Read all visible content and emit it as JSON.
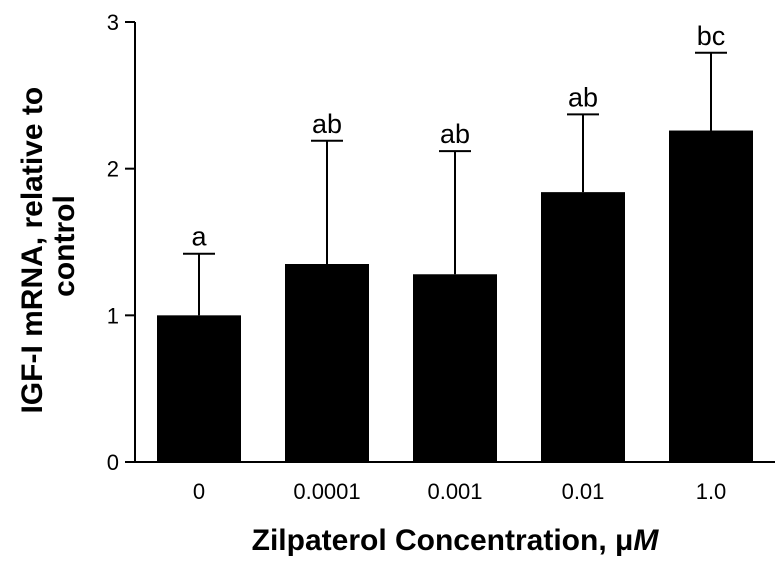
{
  "chart_data": {
    "type": "bar",
    "categories": [
      "0",
      "0.0001",
      "0.001",
      "0.01",
      "1.0"
    ],
    "values": [
      1.0,
      1.35,
      1.28,
      1.84,
      2.26
    ],
    "error_upper": [
      1.42,
      2.19,
      2.12,
      2.37,
      2.79
    ],
    "significance_labels": [
      "a",
      "ab",
      "ab",
      "ab",
      "bc"
    ],
    "xlabel": "Zilpaterol Concentration, μM",
    "ylabel_lines": [
      "IGF-I mRNA, relative to",
      "control"
    ],
    "ylim": [
      0,
      3
    ],
    "yticks": [
      "0",
      "1",
      "2",
      "3"
    ],
    "bar_color": "#000000"
  }
}
